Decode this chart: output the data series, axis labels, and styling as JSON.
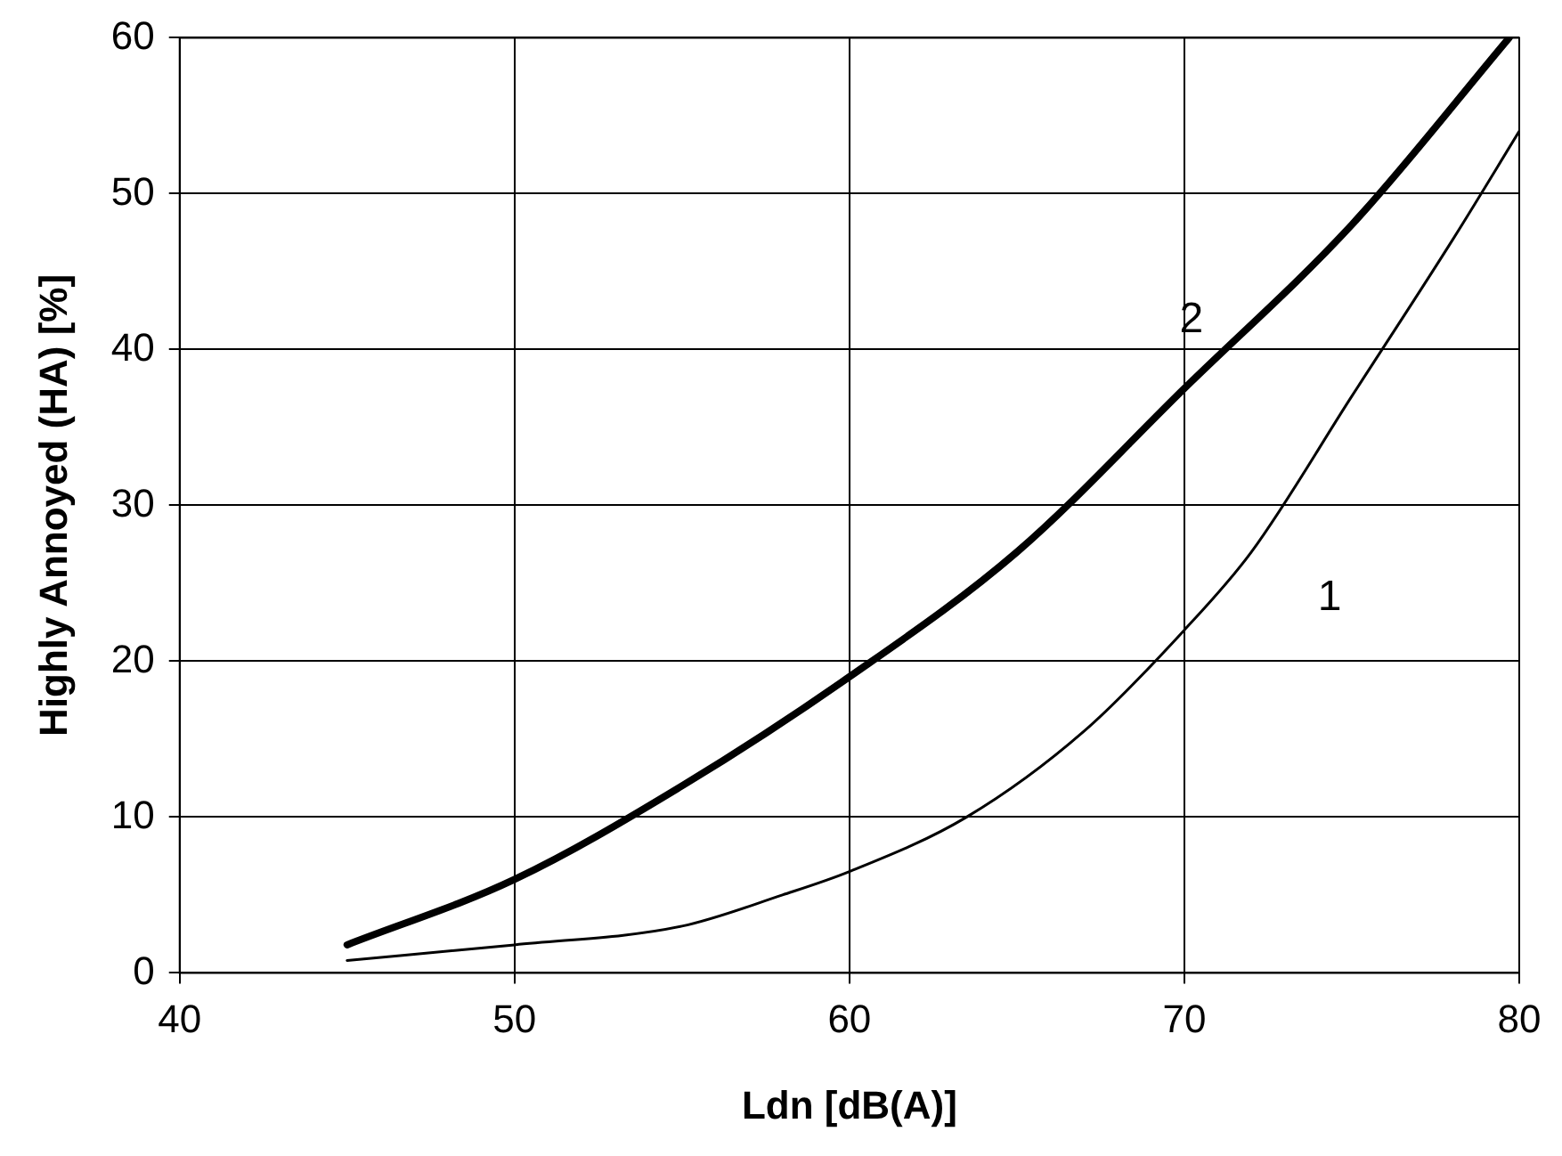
{
  "chart_data": {
    "type": "line",
    "xlabel": "Ldn [dB(A)]",
    "ylabel": "Highly Annoyed (HA) [%]",
    "xlim": [
      40,
      80
    ],
    "xticks": [
      40,
      50,
      60,
      70,
      80
    ],
    "ylim": [
      0,
      60
    ],
    "yticks": [
      0,
      10,
      20,
      30,
      40,
      50,
      60
    ],
    "grid": true,
    "legend": false,
    "marker": "none",
    "line_style": "solid",
    "series": [
      {
        "name": "1",
        "color": "#000000",
        "x": [
          45,
          50,
          55,
          58,
          60,
          63.5,
          67,
          70,
          72,
          75,
          78,
          80
        ],
        "values": [
          0.8,
          1.8,
          3,
          5,
          6.5,
          10,
          15.5,
          22,
          27,
          37,
          47,
          54
        ]
      },
      {
        "name": "2",
        "color": "#000000",
        "x": [
          45,
          50,
          55,
          60,
          65,
          70,
          75,
          79.7
        ],
        "values": [
          1.8,
          6,
          12,
          19,
          27,
          37.5,
          48,
          60
        ]
      }
    ]
  }
}
